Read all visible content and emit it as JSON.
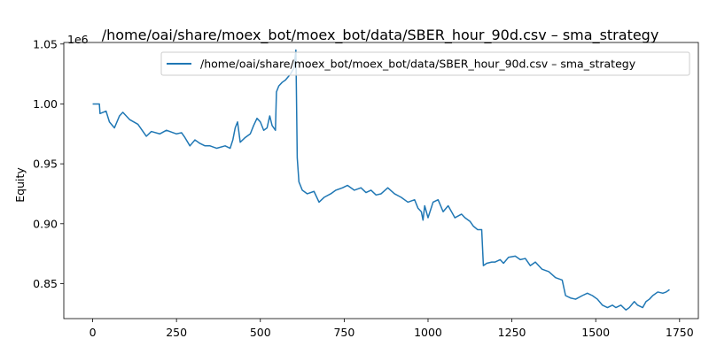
{
  "chart_data": {
    "type": "line",
    "title": "/home/oai/share/moex_bot/moex_bot/data/SBER_hour_90d.csv – sma_strategy",
    "xlabel": "",
    "ylabel": "Equity",
    "y_offset_label": "1e6",
    "xlim": [
      -86,
      1806
    ],
    "ylim": [
      0.8208,
      1.0513
    ],
    "x_ticks": [
      0,
      250,
      500,
      750,
      1000,
      1250,
      1500,
      1750
    ],
    "x_tick_labels": [
      "0",
      "250",
      "500",
      "750",
      "1000",
      "1250",
      "1500",
      "1750"
    ],
    "y_ticks": [
      0.85,
      0.9,
      0.95,
      1.0,
      1.05
    ],
    "y_tick_labels": [
      "0.85",
      "0.90",
      "0.95",
      "1.00",
      "1.05"
    ],
    "grid": false,
    "legend_position": "top-right",
    "colors": {
      "series": "#1f77b4",
      "axes": "#000000",
      "background": "#ffffff"
    },
    "series": [
      {
        "name": "/home/oai/share/moex_bot/moex_bot/data/SBER_hour_90d.csv – sma_strategy",
        "points": [
          [
            0,
            1.0
          ],
          [
            20,
            1.0
          ],
          [
            22,
            0.992
          ],
          [
            40,
            0.994
          ],
          [
            50,
            0.985
          ],
          [
            65,
            0.98
          ],
          [
            80,
            0.99
          ],
          [
            90,
            0.993
          ],
          [
            110,
            0.987
          ],
          [
            135,
            0.983
          ],
          [
            160,
            0.973
          ],
          [
            175,
            0.977
          ],
          [
            200,
            0.975
          ],
          [
            220,
            0.978
          ],
          [
            250,
            0.975
          ],
          [
            265,
            0.976
          ],
          [
            275,
            0.972
          ],
          [
            290,
            0.965
          ],
          [
            305,
            0.97
          ],
          [
            320,
            0.967
          ],
          [
            335,
            0.965
          ],
          [
            350,
            0.965
          ],
          [
            370,
            0.963
          ],
          [
            395,
            0.965
          ],
          [
            410,
            0.963
          ],
          [
            418,
            0.97
          ],
          [
            425,
            0.98
          ],
          [
            432,
            0.985
          ],
          [
            440,
            0.968
          ],
          [
            455,
            0.972
          ],
          [
            470,
            0.975
          ],
          [
            480,
            0.982
          ],
          [
            490,
            0.988
          ],
          [
            500,
            0.985
          ],
          [
            510,
            0.978
          ],
          [
            520,
            0.98
          ],
          [
            528,
            0.99
          ],
          [
            535,
            0.982
          ],
          [
            545,
            0.978
          ],
          [
            548,
            1.01
          ],
          [
            555,
            1.015
          ],
          [
            565,
            1.018
          ],
          [
            575,
            1.02
          ],
          [
            590,
            1.025
          ],
          [
            600,
            1.03
          ],
          [
            606,
            1.045
          ],
          [
            610,
            0.955
          ],
          [
            615,
            0.935
          ],
          [
            625,
            0.928
          ],
          [
            640,
            0.925
          ],
          [
            660,
            0.927
          ],
          [
            675,
            0.918
          ],
          [
            690,
            0.922
          ],
          [
            710,
            0.925
          ],
          [
            725,
            0.928
          ],
          [
            745,
            0.93
          ],
          [
            760,
            0.932
          ],
          [
            780,
            0.928
          ],
          [
            800,
            0.93
          ],
          [
            815,
            0.926
          ],
          [
            830,
            0.928
          ],
          [
            845,
            0.924
          ],
          [
            860,
            0.925
          ],
          [
            880,
            0.93
          ],
          [
            900,
            0.925
          ],
          [
            920,
            0.922
          ],
          [
            940,
            0.918
          ],
          [
            960,
            0.92
          ],
          [
            970,
            0.913
          ],
          [
            980,
            0.91
          ],
          [
            985,
            0.903
          ],
          [
            990,
            0.915
          ],
          [
            1000,
            0.905
          ],
          [
            1015,
            0.918
          ],
          [
            1030,
            0.92
          ],
          [
            1045,
            0.91
          ],
          [
            1060,
            0.915
          ],
          [
            1080,
            0.905
          ],
          [
            1100,
            0.908
          ],
          [
            1110,
            0.905
          ],
          [
            1125,
            0.902
          ],
          [
            1135,
            0.898
          ],
          [
            1148,
            0.895
          ],
          [
            1160,
            0.895
          ],
          [
            1165,
            0.865
          ],
          [
            1175,
            0.867
          ],
          [
            1190,
            0.868
          ],
          [
            1200,
            0.868
          ],
          [
            1215,
            0.87
          ],
          [
            1225,
            0.867
          ],
          [
            1240,
            0.872
          ],
          [
            1260,
            0.873
          ],
          [
            1275,
            0.87
          ],
          [
            1290,
            0.871
          ],
          [
            1305,
            0.865
          ],
          [
            1320,
            0.868
          ],
          [
            1340,
            0.862
          ],
          [
            1360,
            0.86
          ],
          [
            1380,
            0.855
          ],
          [
            1400,
            0.853
          ],
          [
            1410,
            0.84
          ],
          [
            1425,
            0.838
          ],
          [
            1440,
            0.837
          ],
          [
            1460,
            0.84
          ],
          [
            1475,
            0.842
          ],
          [
            1490,
            0.84
          ],
          [
            1505,
            0.837
          ],
          [
            1520,
            0.832
          ],
          [
            1535,
            0.83
          ],
          [
            1550,
            0.832
          ],
          [
            1560,
            0.83
          ],
          [
            1575,
            0.832
          ],
          [
            1590,
            0.828
          ],
          [
            1600,
            0.83
          ],
          [
            1615,
            0.835
          ],
          [
            1625,
            0.832
          ],
          [
            1640,
            0.83
          ],
          [
            1650,
            0.835
          ],
          [
            1660,
            0.837
          ],
          [
            1670,
            0.84
          ],
          [
            1685,
            0.843
          ],
          [
            1700,
            0.842
          ],
          [
            1710,
            0.843
          ],
          [
            1720,
            0.845
          ]
        ]
      }
    ]
  }
}
